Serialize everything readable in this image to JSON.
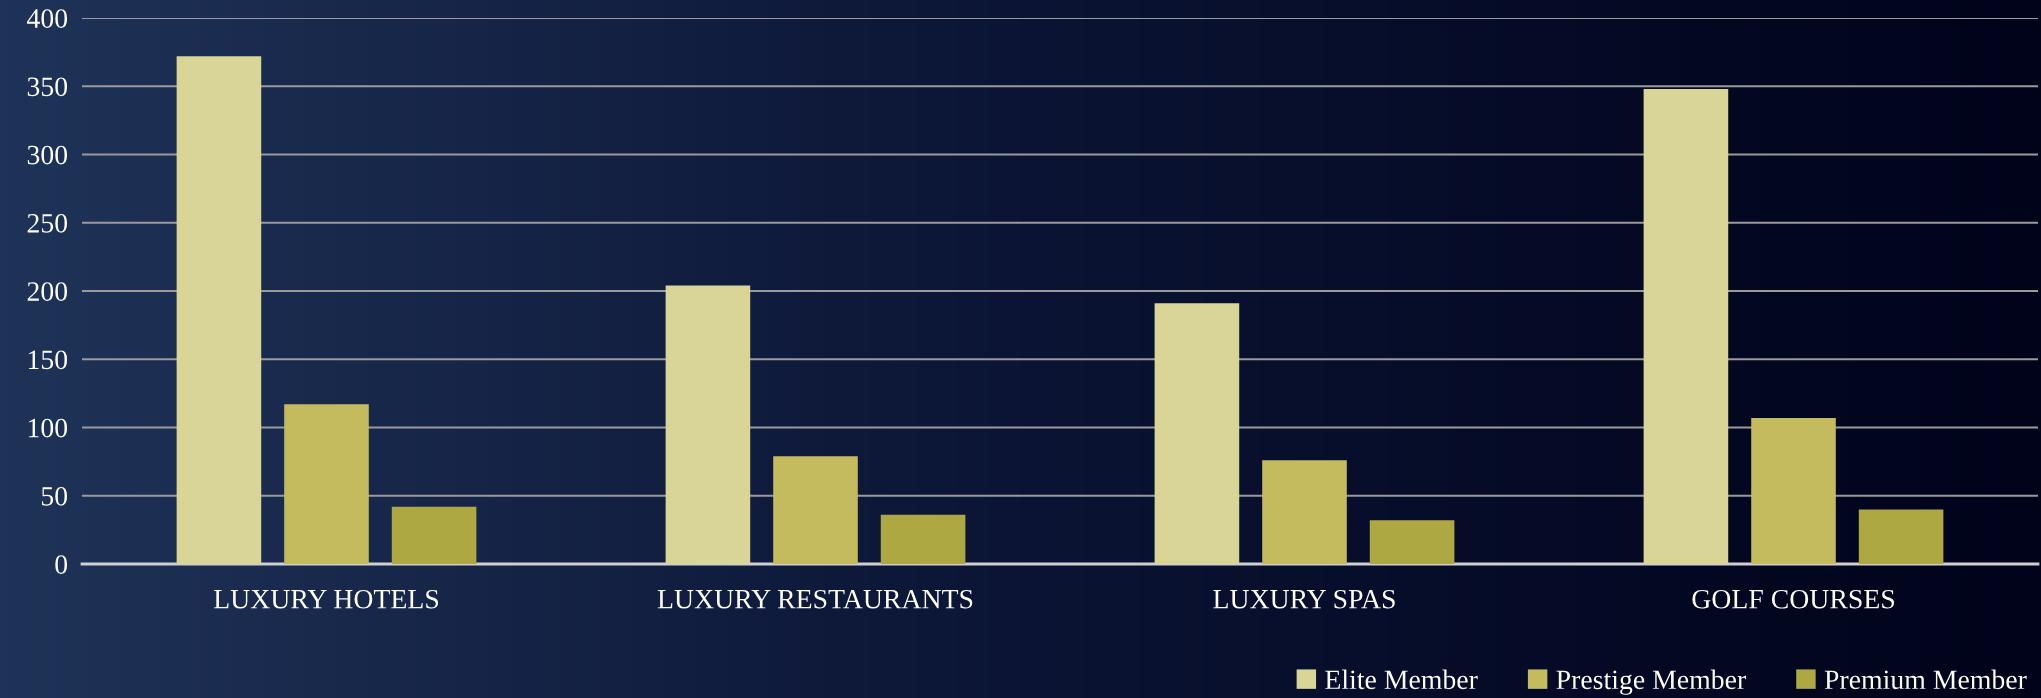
{
  "chart_data": {
    "type": "bar",
    "categories": [
      "LUXURY HOTELS",
      "LUXURY RESTAURANTS",
      "LUXURY SPAS",
      "GOLF COURSES"
    ],
    "series": [
      {
        "name": "Elite Member",
        "color": "#d9d597",
        "values": [
          372,
          204,
          191,
          348
        ]
      },
      {
        "name": "Prestige Member",
        "color": "#c4bb5e",
        "values": [
          117,
          79,
          76,
          107
        ]
      },
      {
        "name": "Premium Member",
        "color": "#aea843",
        "values": [
          42,
          36,
          32,
          40
        ]
      }
    ],
    "ylim": [
      0,
      400
    ],
    "yticks": [
      0,
      50,
      100,
      150,
      200,
      250,
      300,
      350,
      400
    ],
    "grid": "y",
    "legend": "bottom right"
  }
}
